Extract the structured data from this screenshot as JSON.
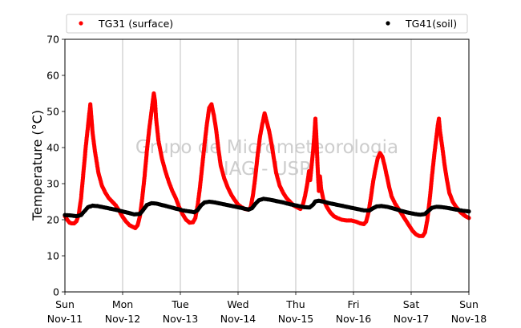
{
  "chart_data": {
    "type": "scatter",
    "ylabel": "Temperature (°C)",
    "ylim": [
      0,
      70
    ],
    "yticks": [
      0,
      10,
      20,
      30,
      40,
      50,
      60,
      70
    ],
    "xlim": [
      0,
      7
    ],
    "grid": "vertical",
    "legend": {
      "placement": "top",
      "entries": [
        "TG31 (surface)",
        "TG41(soil)"
      ]
    },
    "watermark": [
      "Grupo de Micrometeorologia",
      "IAG - USP"
    ],
    "x_ticks": [
      {
        "x": 0,
        "day": "Sun",
        "date": "Nov-11"
      },
      {
        "x": 1,
        "day": "Mon",
        "date": "Nov-12"
      },
      {
        "x": 2,
        "day": "Tue",
        "date": "Nov-13"
      },
      {
        "x": 3,
        "day": "Wed",
        "date": "Nov-14"
      },
      {
        "x": 4,
        "day": "Thu",
        "date": "Nov-15"
      },
      {
        "x": 5,
        "day": "Fri",
        "date": "Nov-16"
      },
      {
        "x": 6,
        "day": "Sat",
        "date": "Nov-17"
      },
      {
        "x": 7,
        "day": "Sun",
        "date": "Nov-18"
      }
    ],
    "series": [
      {
        "name": "TG31 (surface)",
        "color": "#ff0000",
        "points": [
          [
            0.0,
            21.0
          ],
          [
            0.04,
            20.0
          ],
          [
            0.08,
            19.2
          ],
          [
            0.12,
            19.0
          ],
          [
            0.16,
            19.0
          ],
          [
            0.2,
            19.6
          ],
          [
            0.24,
            21.5
          ],
          [
            0.28,
            26.0
          ],
          [
            0.32,
            33.0
          ],
          [
            0.36,
            40.0
          ],
          [
            0.4,
            46.0
          ],
          [
            0.42,
            49.0
          ],
          [
            0.44,
            52.0
          ],
          [
            0.46,
            48.0
          ],
          [
            0.48,
            44.0
          ],
          [
            0.52,
            39.0
          ],
          [
            0.58,
            33.0
          ],
          [
            0.64,
            29.5
          ],
          [
            0.7,
            27.5
          ],
          [
            0.76,
            26.0
          ],
          [
            0.82,
            25.0
          ],
          [
            0.88,
            24.0
          ],
          [
            0.94,
            22.5
          ],
          [
            1.0,
            20.8
          ],
          [
            1.06,
            19.5
          ],
          [
            1.12,
            18.5
          ],
          [
            1.18,
            18.0
          ],
          [
            1.22,
            17.7
          ],
          [
            1.26,
            18.5
          ],
          [
            1.3,
            21.0
          ],
          [
            1.34,
            26.0
          ],
          [
            1.38,
            32.0
          ],
          [
            1.42,
            39.0
          ],
          [
            1.46,
            45.0
          ],
          [
            1.5,
            50.0
          ],
          [
            1.54,
            55.0
          ],
          [
            1.56,
            53.0
          ],
          [
            1.58,
            48.0
          ],
          [
            1.62,
            42.0
          ],
          [
            1.68,
            37.0
          ],
          [
            1.74,
            33.5
          ],
          [
            1.8,
            30.5
          ],
          [
            1.86,
            28.0
          ],
          [
            1.92,
            26.0
          ],
          [
            1.98,
            23.5
          ],
          [
            2.04,
            21.5
          ],
          [
            2.1,
            20.0
          ],
          [
            2.16,
            19.2
          ],
          [
            2.22,
            19.3
          ],
          [
            2.26,
            20.5
          ],
          [
            2.3,
            24.0
          ],
          [
            2.34,
            29.0
          ],
          [
            2.38,
            35.0
          ],
          [
            2.42,
            41.0
          ],
          [
            2.46,
            46.5
          ],
          [
            2.5,
            51.0
          ],
          [
            2.54,
            52.0
          ],
          [
            2.58,
            49.0
          ],
          [
            2.62,
            45.0
          ],
          [
            2.66,
            39.5
          ],
          [
            2.7,
            35.0
          ],
          [
            2.76,
            31.5
          ],
          [
            2.82,
            29.0
          ],
          [
            2.88,
            27.0
          ],
          [
            2.94,
            25.5
          ],
          [
            3.0,
            24.2
          ],
          [
            3.06,
            23.5
          ],
          [
            3.12,
            23.0
          ],
          [
            3.18,
            22.8
          ],
          [
            3.22,
            23.5
          ],
          [
            3.26,
            27.0
          ],
          [
            3.3,
            32.0
          ],
          [
            3.34,
            38.0
          ],
          [
            3.38,
            43.0
          ],
          [
            3.42,
            46.5
          ],
          [
            3.46,
            49.5
          ],
          [
            3.5,
            47.0
          ],
          [
            3.54,
            44.5
          ],
          [
            3.58,
            41.0
          ],
          [
            3.62,
            37.0
          ],
          [
            3.66,
            33.0
          ],
          [
            3.72,
            29.5
          ],
          [
            3.78,
            27.5
          ],
          [
            3.84,
            26.0
          ],
          [
            3.9,
            25.0
          ],
          [
            3.96,
            24.0
          ],
          [
            4.02,
            23.5
          ],
          [
            4.08,
            23.0
          ],
          [
            4.12,
            24.0
          ],
          [
            4.16,
            26.5
          ],
          [
            4.2,
            30.0
          ],
          [
            4.23,
            33.5
          ],
          [
            4.25,
            31.0
          ],
          [
            4.28,
            36.0
          ],
          [
            4.3,
            39.0
          ],
          [
            4.32,
            43.0
          ],
          [
            4.34,
            48.0
          ],
          [
            4.36,
            42.0
          ],
          [
            4.38,
            34.0
          ],
          [
            4.4,
            28.0
          ],
          [
            4.42,
            32.0
          ],
          [
            4.44,
            28.5
          ],
          [
            4.48,
            25.5
          ],
          [
            4.54,
            23.5
          ],
          [
            4.6,
            22.0
          ],
          [
            4.66,
            21.0
          ],
          [
            4.72,
            20.5
          ],
          [
            4.8,
            20.0
          ],
          [
            4.88,
            19.8
          ],
          [
            4.96,
            19.8
          ],
          [
            5.04,
            19.5
          ],
          [
            5.12,
            19.0
          ],
          [
            5.18,
            18.8
          ],
          [
            5.22,
            19.5
          ],
          [
            5.26,
            22.0
          ],
          [
            5.3,
            26.0
          ],
          [
            5.34,
            30.5
          ],
          [
            5.38,
            34.0
          ],
          [
            5.42,
            37.0
          ],
          [
            5.46,
            38.5
          ],
          [
            5.5,
            37.5
          ],
          [
            5.54,
            35.0
          ],
          [
            5.58,
            32.0
          ],
          [
            5.62,
            29.0
          ],
          [
            5.66,
            26.5
          ],
          [
            5.72,
            24.5
          ],
          [
            5.78,
            23.0
          ],
          [
            5.84,
            21.5
          ],
          [
            5.9,
            20.0
          ],
          [
            5.96,
            18.5
          ],
          [
            6.02,
            17.0
          ],
          [
            6.08,
            16.0
          ],
          [
            6.14,
            15.5
          ],
          [
            6.2,
            15.5
          ],
          [
            6.24,
            16.5
          ],
          [
            6.28,
            20.0
          ],
          [
            6.32,
            25.5
          ],
          [
            6.36,
            32.0
          ],
          [
            6.4,
            38.0
          ],
          [
            6.43,
            42.0
          ],
          [
            6.46,
            46.0
          ],
          [
            6.48,
            48.0
          ],
          [
            6.5,
            44.5
          ],
          [
            6.54,
            40.0
          ],
          [
            6.58,
            35.0
          ],
          [
            6.62,
            31.0
          ],
          [
            6.66,
            27.5
          ],
          [
            6.72,
            25.0
          ],
          [
            6.78,
            23.5
          ],
          [
            6.86,
            22.0
          ],
          [
            6.94,
            21.0
          ],
          [
            7.0,
            20.5
          ]
        ]
      },
      {
        "name": "TG41(soil)",
        "color": "#000000",
        "points": [
          [
            0.0,
            21.3
          ],
          [
            0.1,
            21.2
          ],
          [
            0.2,
            21.0
          ],
          [
            0.28,
            21.3
          ],
          [
            0.34,
            22.4
          ],
          [
            0.4,
            23.5
          ],
          [
            0.48,
            23.9
          ],
          [
            0.56,
            23.8
          ],
          [
            0.66,
            23.5
          ],
          [
            0.78,
            23.1
          ],
          [
            0.9,
            22.7
          ],
          [
            1.0,
            22.3
          ],
          [
            1.1,
            21.9
          ],
          [
            1.2,
            21.5
          ],
          [
            1.3,
            21.6
          ],
          [
            1.36,
            22.8
          ],
          [
            1.42,
            24.1
          ],
          [
            1.5,
            24.6
          ],
          [
            1.58,
            24.5
          ],
          [
            1.68,
            24.1
          ],
          [
            1.8,
            23.6
          ],
          [
            1.92,
            23.1
          ],
          [
            2.04,
            22.6
          ],
          [
            2.16,
            22.3
          ],
          [
            2.24,
            22.1
          ],
          [
            2.3,
            22.7
          ],
          [
            2.36,
            24.0
          ],
          [
            2.42,
            24.8
          ],
          [
            2.5,
            25.0
          ],
          [
            2.6,
            24.8
          ],
          [
            2.72,
            24.4
          ],
          [
            2.84,
            24.0
          ],
          [
            2.96,
            23.6
          ],
          [
            3.08,
            23.2
          ],
          [
            3.18,
            22.8
          ],
          [
            3.24,
            23.2
          ],
          [
            3.3,
            24.4
          ],
          [
            3.36,
            25.4
          ],
          [
            3.44,
            25.8
          ],
          [
            3.54,
            25.6
          ],
          [
            3.66,
            25.2
          ],
          [
            3.78,
            24.8
          ],
          [
            3.9,
            24.3
          ],
          [
            4.02,
            23.9
          ],
          [
            4.14,
            23.5
          ],
          [
            4.24,
            23.4
          ],
          [
            4.3,
            24.2
          ],
          [
            4.34,
            25.1
          ],
          [
            4.4,
            25.3
          ],
          [
            4.48,
            25.0
          ],
          [
            4.58,
            24.6
          ],
          [
            4.7,
            24.2
          ],
          [
            4.82,
            23.8
          ],
          [
            4.94,
            23.4
          ],
          [
            5.06,
            23.0
          ],
          [
            5.18,
            22.6
          ],
          [
            5.28,
            22.6
          ],
          [
            5.34,
            23.2
          ],
          [
            5.4,
            23.7
          ],
          [
            5.48,
            23.8
          ],
          [
            5.58,
            23.6
          ],
          [
            5.7,
            23.1
          ],
          [
            5.82,
            22.5
          ],
          [
            5.94,
            22.0
          ],
          [
            6.06,
            21.6
          ],
          [
            6.16,
            21.4
          ],
          [
            6.24,
            21.6
          ],
          [
            6.3,
            22.5
          ],
          [
            6.36,
            23.3
          ],
          [
            6.44,
            23.6
          ],
          [
            6.54,
            23.5
          ],
          [
            6.66,
            23.2
          ],
          [
            6.78,
            22.8
          ],
          [
            6.9,
            22.5
          ],
          [
            7.0,
            22.3
          ]
        ]
      }
    ]
  }
}
